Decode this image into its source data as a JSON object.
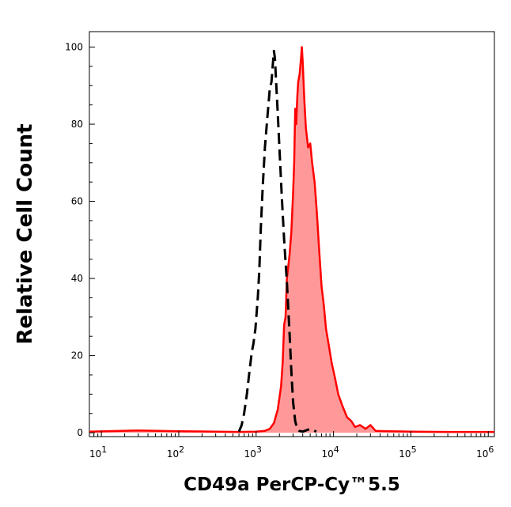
{
  "chart_data": {
    "type": "area",
    "xlabel": "CD49a PerCP-Cy™5.5",
    "ylabel": "Relative Cell Count",
    "x_scale": "log",
    "xlim": [
      7,
      1200000
    ],
    "ylim": [
      -1,
      104
    ],
    "grid": false,
    "x_ticks": [
      {
        "value": 10,
        "base": "10",
        "exp": "1"
      },
      {
        "value": 100,
        "base": "10",
        "exp": "2"
      },
      {
        "value": 1000,
        "base": "10",
        "exp": "3"
      },
      {
        "value": 10000,
        "base": "10",
        "exp": "4"
      },
      {
        "value": 100000,
        "base": "10",
        "exp": "5"
      },
      {
        "value": 1000000,
        "base": "10",
        "exp": "6"
      }
    ],
    "y_ticks": [
      {
        "value": 0,
        "label": "0"
      },
      {
        "value": 20,
        "label": "20"
      },
      {
        "value": 40,
        "label": "40"
      },
      {
        "value": 60,
        "label": "60"
      },
      {
        "value": 80,
        "label": "80"
      },
      {
        "value": 100,
        "label": "100"
      }
    ],
    "series": [
      {
        "style": "filled",
        "color": "#ff0000",
        "fill": "#ff9999",
        "points": [
          [
            7,
            0.3
          ],
          [
            30,
            0.6
          ],
          [
            100,
            0.4
          ],
          [
            300,
            0.3
          ],
          [
            600,
            0.2
          ],
          [
            1000,
            0.3
          ],
          [
            1300,
            0.5
          ],
          [
            1500,
            1
          ],
          [
            1700,
            2.5
          ],
          [
            1900,
            6
          ],
          [
            2100,
            12
          ],
          [
            2200,
            18
          ],
          [
            2300,
            28
          ],
          [
            2400,
            30
          ],
          [
            2500,
            40
          ],
          [
            2700,
            46
          ],
          [
            2850,
            52
          ],
          [
            3000,
            62
          ],
          [
            3100,
            70
          ],
          [
            3200,
            84
          ],
          [
            3300,
            80
          ],
          [
            3400,
            87
          ],
          [
            3500,
            91
          ],
          [
            3650,
            93
          ],
          [
            3800,
            97
          ],
          [
            3900,
            100
          ],
          [
            4000,
            96
          ],
          [
            4200,
            86
          ],
          [
            4400,
            79
          ],
          [
            4700,
            74
          ],
          [
            5000,
            75
          ],
          [
            5300,
            70
          ],
          [
            5700,
            65
          ],
          [
            6100,
            57
          ],
          [
            6500,
            48
          ],
          [
            7000,
            38
          ],
          [
            7500,
            33
          ],
          [
            8000,
            27
          ],
          [
            8800,
            22
          ],
          [
            9500,
            18
          ],
          [
            10500,
            14
          ],
          [
            11500,
            10
          ],
          [
            13000,
            7
          ],
          [
            15000,
            4
          ],
          [
            17000,
            3
          ],
          [
            19000,
            1.5
          ],
          [
            22000,
            2
          ],
          [
            26000,
            1
          ],
          [
            30000,
            2
          ],
          [
            35000,
            0.5
          ],
          [
            50000,
            0.4
          ],
          [
            100000,
            0.3
          ],
          [
            300000,
            0.2
          ],
          [
            1200000,
            0.2
          ]
        ]
      },
      {
        "style": "dashed",
        "color": "#000000",
        "points": [
          [
            600,
            0.3
          ],
          [
            650,
            2
          ],
          [
            700,
            5
          ],
          [
            760,
            10
          ],
          [
            820,
            16
          ],
          [
            880,
            21
          ],
          [
            920,
            23
          ],
          [
            980,
            27
          ],
          [
            1050,
            35
          ],
          [
            1100,
            42
          ],
          [
            1150,
            53
          ],
          [
            1220,
            64
          ],
          [
            1300,
            74
          ],
          [
            1400,
            82
          ],
          [
            1500,
            89
          ],
          [
            1580,
            91
          ],
          [
            1650,
            96
          ],
          [
            1700,
            99
          ],
          [
            1750,
            97
          ],
          [
            1800,
            92
          ],
          [
            1900,
            83
          ],
          [
            2000,
            74
          ],
          [
            2150,
            61
          ],
          [
            2300,
            50
          ],
          [
            2500,
            39
          ],
          [
            2700,
            26
          ],
          [
            2850,
            16
          ],
          [
            3000,
            8
          ],
          [
            3200,
            3
          ],
          [
            3400,
            1
          ],
          [
            3600,
            0.5
          ],
          [
            4000,
            0.3
          ],
          [
            5000,
            1
          ],
          [
            6000,
            0.3
          ]
        ]
      }
    ]
  }
}
